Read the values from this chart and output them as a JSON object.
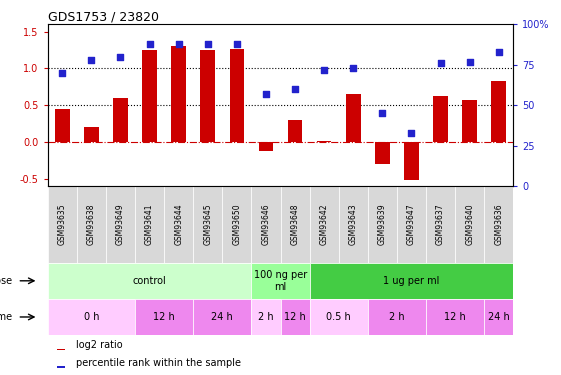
{
  "title": "GDS1753 / 23820",
  "samples": [
    "GSM93635",
    "GSM93638",
    "GSM93649",
    "GSM93641",
    "GSM93644",
    "GSM93645",
    "GSM93650",
    "GSM93646",
    "GSM93648",
    "GSM93642",
    "GSM93643",
    "GSM93639",
    "GSM93647",
    "GSM93637",
    "GSM93640",
    "GSM93636"
  ],
  "log2_ratio": [
    0.45,
    0.2,
    0.6,
    1.25,
    1.3,
    1.25,
    1.27,
    -0.12,
    0.3,
    0.02,
    0.65,
    -0.3,
    -0.52,
    0.62,
    0.57,
    0.83
  ],
  "pct_rank": [
    70,
    78,
    80,
    88,
    88,
    88,
    88,
    57,
    60,
    72,
    73,
    45,
    33,
    76,
    77,
    83
  ],
  "bar_color": "#cc0000",
  "dot_color": "#2222cc",
  "dose_groups": [
    {
      "label": "control",
      "start": 0,
      "end": 7,
      "color": "#ccffcc"
    },
    {
      "label": "100 ng per\nml",
      "start": 7,
      "end": 9,
      "color": "#99ff99"
    },
    {
      "label": "1 ug per ml",
      "start": 9,
      "end": 16,
      "color": "#44cc44"
    }
  ],
  "time_groups": [
    {
      "label": "0 h",
      "start": 0,
      "end": 3,
      "color": "#ffccff"
    },
    {
      "label": "12 h",
      "start": 3,
      "end": 5,
      "color": "#ee88ee"
    },
    {
      "label": "24 h",
      "start": 5,
      "end": 7,
      "color": "#ee88ee"
    },
    {
      "label": "2 h",
      "start": 7,
      "end": 8,
      "color": "#ffccff"
    },
    {
      "label": "12 h",
      "start": 8,
      "end": 9,
      "color": "#ee88ee"
    },
    {
      "label": "0.5 h",
      "start": 9,
      "end": 11,
      "color": "#ffccff"
    },
    {
      "label": "2 h",
      "start": 11,
      "end": 13,
      "color": "#ee88ee"
    },
    {
      "label": "12 h",
      "start": 13,
      "end": 15,
      "color": "#ee88ee"
    },
    {
      "label": "24 h",
      "start": 15,
      "end": 16,
      "color": "#ee88ee"
    }
  ],
  "ylim_left": [
    -0.6,
    1.6
  ],
  "ylim_right": [
    0,
    100
  ],
  "yticks_left": [
    -0.5,
    0.0,
    0.5,
    1.0,
    1.5
  ],
  "yticks_right": [
    0,
    25,
    50,
    75,
    100
  ],
  "hlines": [
    0.5,
    1.0
  ],
  "bar_width": 0.5,
  "dot_size": 25
}
